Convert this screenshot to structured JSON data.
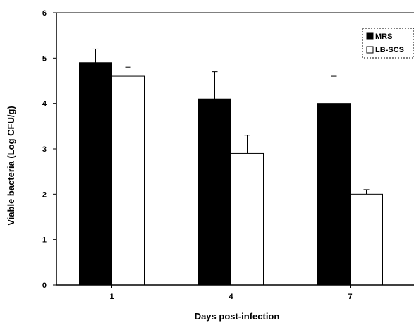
{
  "chart_data": {
    "type": "bar",
    "title": "",
    "xlabel": "Days post-infection",
    "ylabel": "Viable bacteria (Log CFU/g)",
    "categories": [
      "1",
      "4",
      "7"
    ],
    "ylim": [
      0,
      6
    ],
    "yticks": [
      "0",
      "1",
      "2",
      "3",
      "4",
      "5",
      "6"
    ],
    "grid": false,
    "legend_position": "top-right",
    "series": [
      {
        "name": "MRS",
        "color": "#000000",
        "values": [
          4.9,
          4.1,
          4.0
        ],
        "errors": [
          0.3,
          0.6,
          0.6
        ]
      },
      {
        "name": "LB-SCS",
        "color": "#ffffff",
        "values": [
          4.6,
          2.9,
          2.0
        ],
        "errors": [
          0.2,
          0.4,
          0.1
        ]
      }
    ]
  }
}
